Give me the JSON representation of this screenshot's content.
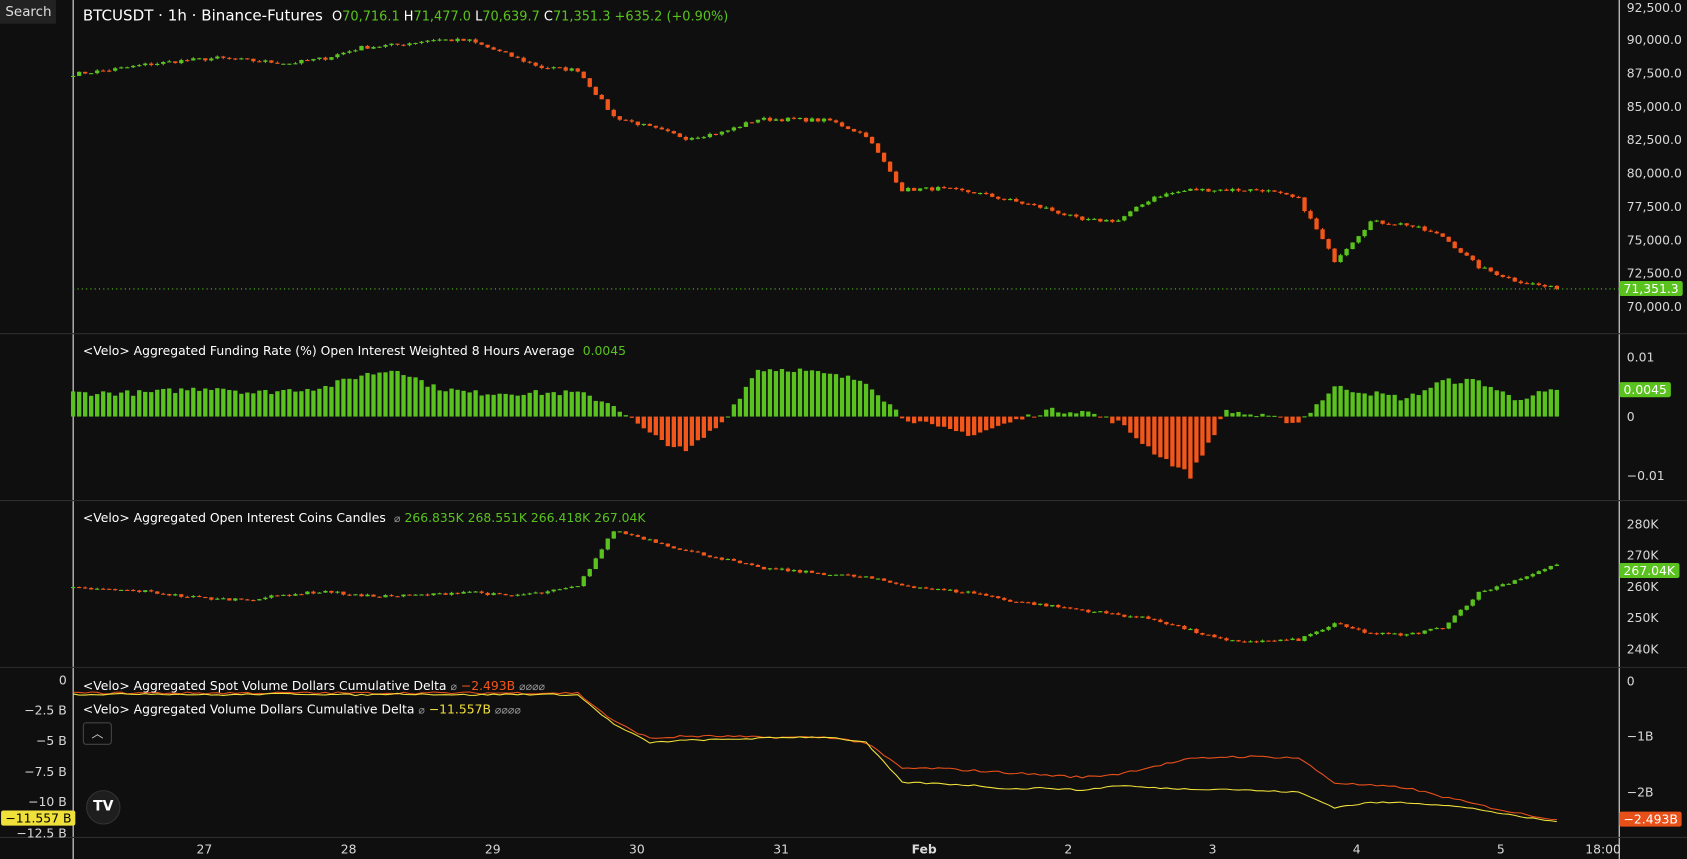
{
  "search_label": "Search",
  "header": {
    "symbol": "BTCUSDT · 1h · Binance-Futures",
    "o_label": "O",
    "o": "70,716.1",
    "h_label": "H",
    "h": "71,477.0",
    "l_label": "L",
    "l": "70,639.7",
    "c_label": "C",
    "c": "71,351.3",
    "change": "+635.2 (+0.90%)"
  },
  "colors": {
    "up": "#5ac21e",
    "down": "#f2561a",
    "spot_line": "#e8501a",
    "volume_line": "#f0e03a",
    "background": "#0f0f0f"
  },
  "price_axis": {
    "ticks": [
      "92,500.0",
      "90,000.0",
      "87,500.0",
      "85,000.0",
      "82,500.0",
      "80,000.0",
      "77,500.0",
      "75,000.0",
      "72,500.0",
      "70,000.0"
    ],
    "last": "71,351.3"
  },
  "funding": {
    "title": "<Velo> Aggregated Funding Rate (%) Open Interest Weighted 8 Hours Average",
    "value": "0.0045",
    "ticks": [
      "0.01",
      "0",
      "−0.01"
    ],
    "last": "0.0045"
  },
  "oi": {
    "title": "<Velo> Aggregated Open Interest Coins Candles",
    "icon": "⌀",
    "o": "266.835K",
    "h": "268.551K",
    "l": "266.418K",
    "c": "267.04K",
    "ticks": [
      "280K",
      "270K",
      "260K",
      "250K",
      "240K"
    ],
    "last": "267.04K"
  },
  "cvd": {
    "spot_title": "<Velo> Aggregated Spot Volume Dollars Cumulative Delta",
    "spot_value": "−2.493B",
    "vol_title": "<Velo> Aggregated Volume Dollars Cumulative Delta",
    "vol_value": "−11.557B",
    "na": "⌀",
    "left_ticks": [
      "0",
      "−2.5 B",
      "−5 B",
      "−7.5 B",
      "−10 B",
      "−12.5 B"
    ],
    "right_ticks": [
      "0",
      "−1B",
      "−2B"
    ],
    "left_last": "−11.557 B",
    "right_last": "−2.493B",
    "collapse_icon": "chevron-up"
  },
  "time_axis": [
    "27",
    "28",
    "29",
    "30",
    "31",
    "Feb",
    "2",
    "3",
    "4",
    "5",
    "18:00"
  ],
  "logo": "TV",
  "chart_data": [
    {
      "type": "candlestick",
      "name": "BTCUSDT",
      "ylim": [
        69000,
        93000
      ],
      "times": [
        "01-26 02:00",
        "01-26 08:00",
        "01-26 14:00",
        "01-26 20:00",
        "01-27 02:00",
        "01-27 08:00",
        "01-27 14:00",
        "01-27 20:00",
        "01-28 02:00",
        "01-28 08:00",
        "01-28 14:00",
        "01-28 20:00",
        "01-29 02:00",
        "01-29 08:00",
        "01-29 14:00",
        "01-29 20:00",
        "01-30 02:00",
        "01-30 08:00",
        "01-30 14:00",
        "01-30 20:00",
        "01-31 02:00",
        "01-31 08:00",
        "01-31 14:00",
        "01-31 20:00",
        "02-01 02:00",
        "02-01 08:00",
        "02-01 14:00",
        "02-01 20:00",
        "02-02 02:00",
        "02-02 08:00",
        "02-02 14:00",
        "02-02 20:00",
        "02-03 02:00",
        "02-03 08:00",
        "02-03 14:00",
        "02-03 20:00",
        "02-04 02:00",
        "02-04 08:00",
        "02-04 14:00",
        "02-04 20:00",
        "02-05 02:00",
        "02-05 09:00"
      ],
      "close": [
        87500,
        87800,
        88200,
        88500,
        88700,
        88500,
        88300,
        88700,
        89500,
        89700,
        90100,
        90000,
        89000,
        88000,
        87800,
        84300,
        83500,
        82700,
        83100,
        84100,
        84100,
        84000,
        82900,
        78800,
        78900,
        78600,
        78000,
        77400,
        76500,
        76500,
        78300,
        78800,
        78800,
        78800,
        78100,
        73500,
        76400,
        76200,
        75300,
        73000,
        72000,
        71351.3
      ]
    },
    {
      "type": "bar",
      "name": "Funding Rate",
      "ylim": [
        -0.014,
        0.013
      ],
      "values": [
        0.004,
        0.004,
        0.004,
        0.0045,
        0.005,
        0.004,
        0.0045,
        0.005,
        0.007,
        0.008,
        0.005,
        0.004,
        0.004,
        0.004,
        0.004,
        0.002,
        -0.003,
        -0.006,
        -0.001,
        0.008,
        0.008,
        0.007,
        0.006,
        0.0,
        -0.002,
        -0.003,
        -0.001,
        0.001,
        0.001,
        -0.001,
        -0.006,
        -0.01,
        0.001,
        0.0,
        -0.001,
        0.005,
        0.004,
        0.003,
        0.006,
        0.006,
        0.003,
        0.0045
      ]
    },
    {
      "type": "candlestick",
      "name": "Open Interest (K)",
      "ylim": [
        236,
        287
      ],
      "close": [
        259.5,
        259,
        258.5,
        257,
        256,
        256,
        257.5,
        258.5,
        257,
        257,
        257.5,
        258.5,
        257,
        258,
        260,
        278,
        275,
        271.5,
        269,
        266,
        265,
        264,
        263,
        260.5,
        259,
        258,
        255.5,
        254,
        252.5,
        251,
        249.5,
        246,
        242.5,
        242.5,
        243,
        248,
        245,
        244.5,
        247,
        258,
        262,
        267.04
      ]
    },
    {
      "type": "line",
      "name": "Cumulative Delta (B)",
      "series": [
        {
          "name": "<Velo> Aggregated Spot Volume Dollars Cumulative Delta",
          "axis": "right",
          "ylim": [
            -2.7,
            0.1
          ],
          "values": [
            -0.21,
            -0.21,
            -0.21,
            -0.21,
            -0.21,
            -0.21,
            -0.21,
            -0.21,
            -0.21,
            -0.21,
            -0.21,
            -0.21,
            -0.21,
            -0.21,
            -0.21,
            -0.72,
            -1.03,
            -0.99,
            -0.99,
            -1.01,
            -1.01,
            -1.01,
            -1.11,
            -1.57,
            -1.57,
            -1.61,
            -1.65,
            -1.69,
            -1.73,
            -1.67,
            -1.53,
            -1.4,
            -1.36,
            -1.36,
            -1.38,
            -1.83,
            -1.88,
            -1.92,
            -2.08,
            -2.23,
            -2.37,
            -2.493
          ]
        },
        {
          "name": "<Velo> Aggregated Volume Dollars Cumulative Delta",
          "axis": "left",
          "ylim": [
            -12.9,
            0.1
          ],
          "values": [
            -1.15,
            -1.15,
            -1.1,
            -1.15,
            -1.2,
            -1.15,
            -1.1,
            -1.15,
            -1.2,
            -1.1,
            -1.15,
            -1.2,
            -1.15,
            -1.15,
            -1.2,
            -3.6,
            -5.1,
            -4.9,
            -4.85,
            -4.75,
            -4.65,
            -4.65,
            -5.1,
            -8.35,
            -8.45,
            -8.6,
            -8.9,
            -8.8,
            -9.0,
            -8.6,
            -8.8,
            -8.9,
            -8.9,
            -9.05,
            -9.15,
            -10.4,
            -10.0,
            -10.0,
            -10.2,
            -10.55,
            -11.1,
            -11.557
          ]
        }
      ]
    }
  ]
}
